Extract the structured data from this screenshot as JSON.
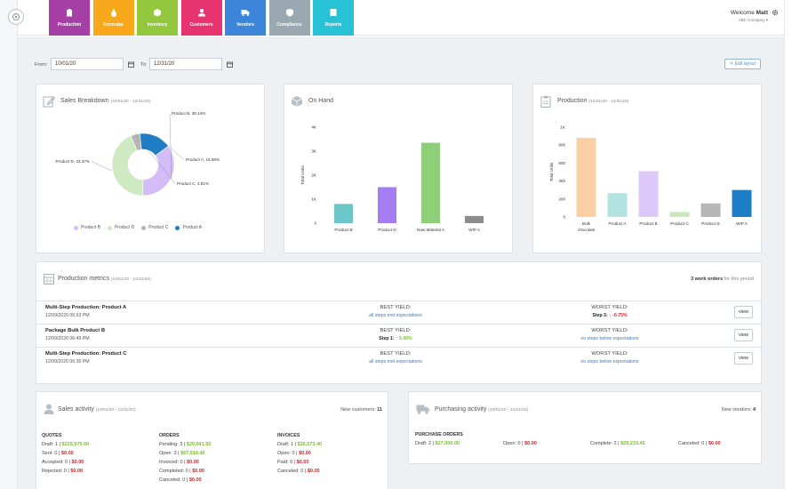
{
  "nav": [
    {
      "label": "Production",
      "color": "#a63fa6",
      "icon": "clipboard-icon"
    },
    {
      "label": "Formulas",
      "color": "#f7a81b",
      "icon": "drop-icon"
    },
    {
      "label": "Inventory",
      "color": "#93c83e",
      "icon": "box-icon"
    },
    {
      "label": "Customers",
      "color": "#e7336f",
      "icon": "user-icon"
    },
    {
      "label": "Vendors",
      "color": "#3b86d9",
      "icon": "truck-icon"
    },
    {
      "label": "Compliance",
      "color": "#9aa8b1",
      "icon": "shield-icon"
    },
    {
      "label": "Reports",
      "color": "#27c2d5",
      "icon": "report-icon"
    }
  ],
  "user": {
    "welcome_prefix": "Welcome",
    "name": "Matt",
    "company": "ABC Company ▾"
  },
  "filters": {
    "from_label": "From:",
    "from_value": "10/01/20",
    "to_label": "To:",
    "to_value": "12/31/20",
    "edit_layout": "Edit layout"
  },
  "sales_breakdown": {
    "title": "Sales Breakdown",
    "range": "(10/01/20 - 12/31/20)",
    "chart_data": {
      "type": "pie",
      "slices": [
        {
          "name": "Product B",
          "value": 35.14,
          "label": "Product B, 35.14%",
          "color": "#d3bcf7"
        },
        {
          "name": "Product D",
          "value": 43.37,
          "label": "Product D, 43.37%",
          "color": "#cfe9c2"
        },
        {
          "name": "Product C",
          "value": 4.81,
          "label": "Product C, 4.81%",
          "color": "#b5b5b5"
        },
        {
          "name": "Product A",
          "value": 16.68,
          "label": "Product A, 16.68%",
          "color": "#1f7dc4"
        }
      ],
      "legend": [
        "Product B",
        "Product D",
        "Product C",
        "Product A"
      ],
      "legend_position": "bottom",
      "donut": true
    }
  },
  "on_hand": {
    "title": "On Hand",
    "chart_data": {
      "type": "bar",
      "categories": [
        "Product B",
        "Product D",
        "Raw Material A",
        "WIP A"
      ],
      "values": [
        800,
        1500,
        3350,
        300
      ],
      "colors": [
        "#6cc5c9",
        "#a67cf2",
        "#8ecf7a",
        "#8c8c8c"
      ],
      "ylabel": "Total Units",
      "ylim": [
        0,
        4000
      ],
      "yticks": [
        "0",
        "1K",
        "2K",
        "3K",
        "4K"
      ]
    }
  },
  "production": {
    "title": "Production",
    "range": "(10/01/20 - 12/31/20)",
    "chart_data": {
      "type": "bar",
      "categories": [
        "Bulk chocolate",
        "Product A",
        "Product B",
        "Product C",
        "Product D",
        "WIP A"
      ],
      "values": [
        880,
        265,
        510,
        55,
        150,
        300
      ],
      "colors": [
        "#f9cfa3",
        "#b3e3e1",
        "#dcc9f7",
        "#c9e6bd",
        "#b6b6b6",
        "#1f7dc4"
      ],
      "ylabel": "Total Units",
      "ylim": [
        0,
        1000
      ],
      "yticks": [
        "0",
        "200",
        "400",
        "600",
        "800",
        "1K"
      ]
    }
  },
  "metrics": {
    "title": "Production metrics",
    "range": "(10/01/20 - 12/31/20)",
    "count_text": "3 work orders",
    "count_suffix": "for this period",
    "best_label": "BEST YIELD:",
    "worst_label": "WORST YIELD:",
    "view_label": "view",
    "rows": [
      {
        "name": "Multi-Step Production: Product A",
        "date": "12/09/2020 06:53 PM",
        "best": "all steps met expectations",
        "worst": "Step 3: ↓ -0.75%"
      },
      {
        "name": "Package Bulk Product B",
        "date": "12/09/2020 06:49 PM",
        "best": "Step 1: ↑ 5.45%",
        "worst": "no steps below expectations"
      },
      {
        "name": "Multi-Step Production: Product C",
        "date": "12/09/2020 06:35 PM",
        "best": "all steps met expectations",
        "worst": "no steps below expectations"
      }
    ]
  },
  "sales_activity": {
    "title": "Sales activity",
    "range": "(10/01/20 - 12/31/20)",
    "new_label": "New customers:",
    "new_value": "11",
    "quotes": {
      "head": "QUOTES",
      "lines": [
        [
          "Draft: 1 | ",
          "$229,575.00",
          "g"
        ],
        [
          "Sent: 0 | ",
          "$0.00",
          "r"
        ],
        [
          "Accepted: 0 | ",
          "$0.00",
          "r"
        ],
        [
          "Rejected: 0 | ",
          "$0.00",
          "r"
        ]
      ]
    },
    "orders": {
      "head": "ORDERS",
      "lines": [
        [
          "Pending: 3 | ",
          "$20,641.92",
          "g"
        ],
        [
          "Open: 3 | ",
          "$67,919.40",
          "g"
        ],
        [
          "Invoiced: 0 | ",
          "$0.00",
          "r"
        ],
        [
          "Completed: 0 | ",
          "$0.00",
          "r"
        ],
        [
          "Canceled: 0 | ",
          "$0.00",
          "r"
        ]
      ]
    },
    "invoices": {
      "head": "INVOICES",
      "lines": [
        [
          "Draft: 1 | ",
          "$26,573.40",
          "g"
        ],
        [
          "Open: 0 | ",
          "$0.00",
          "r"
        ],
        [
          "Paid: 0 | ",
          "$0.00",
          "r"
        ],
        [
          "Canceled: 0 | ",
          "$0.00",
          "r"
        ]
      ]
    }
  },
  "purchasing_activity": {
    "title": "Purchasing activity",
    "range": "(10/01/20 - 12/31/20)",
    "new_label": "New vendors:",
    "new_value": "4",
    "head": "PURCHASE ORDERS",
    "items": [
      [
        "Draft: 2 | ",
        "$27,000.00",
        "g"
      ],
      [
        "Open: 0 | ",
        "$0.00",
        "r"
      ],
      [
        "Complete: 2 | ",
        "$29,233.45",
        "g"
      ],
      [
        "Canceled: 0 | ",
        "$0.00",
        "r"
      ]
    ]
  }
}
